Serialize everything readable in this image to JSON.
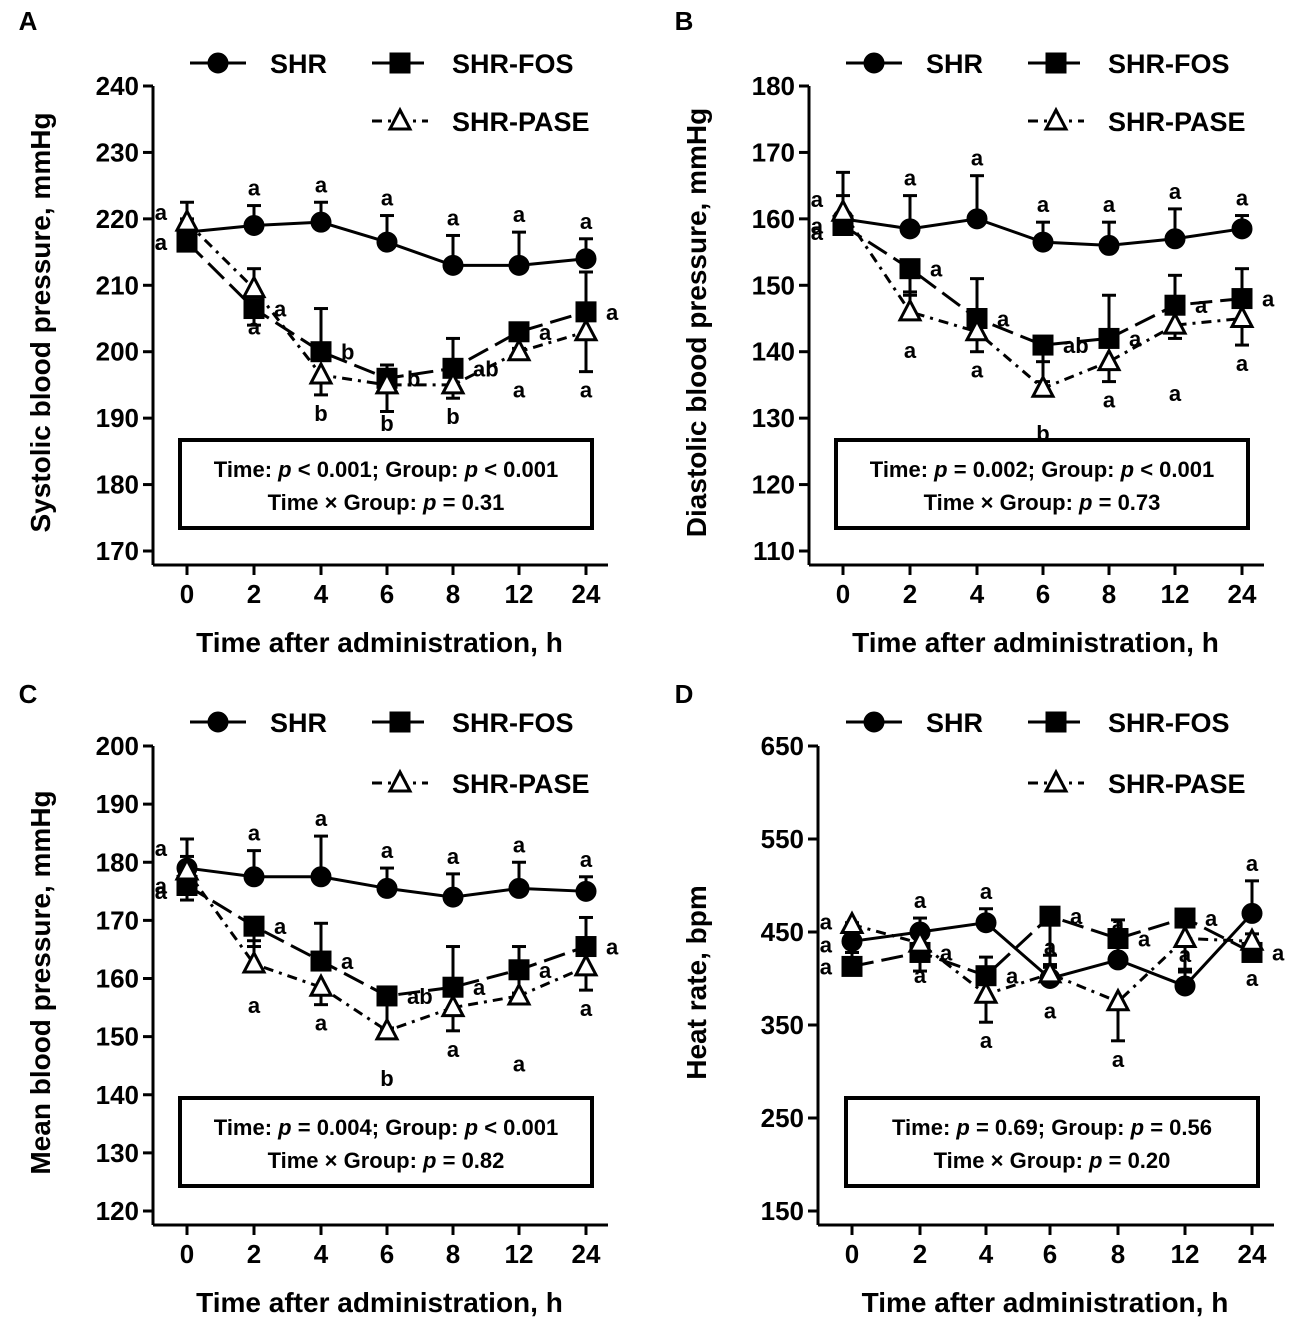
{
  "legend": {
    "shr": "SHR",
    "fos": "SHR-FOS",
    "pase": "SHR-PASE"
  },
  "chart_data": [
    {
      "panel": "A",
      "type": "line",
      "title": "",
      "ylabel": "Systolic blood pressure, mmHg",
      "xlabel": "Time after administration, h",
      "categories": [
        "0",
        "2",
        "4",
        "6",
        "8",
        "12",
        "24"
      ],
      "ylim": [
        170,
        240
      ],
      "yticks": [
        170,
        180,
        190,
        200,
        210,
        220,
        230,
        240
      ],
      "legend_position": "top",
      "series": [
        {
          "name": "SHR",
          "marker": "circle",
          "values": [
            218,
            219,
            219.5,
            216.5,
            213,
            213,
            214
          ],
          "errors": [
            4.5,
            3,
            3,
            4,
            4.5,
            5,
            3
          ]
        },
        {
          "name": "SHR-FOS",
          "marker": "square",
          "values": [
            216.5,
            206.5,
            200,
            196,
            197.5,
            203,
            206
          ],
          "errors": [
            3.5,
            2.5,
            6.5,
            5,
            4.5,
            2.5,
            6
          ]
        },
        {
          "name": "SHR-PASE",
          "marker": "triangle",
          "values": [
            219.5,
            209.5,
            196.5,
            195,
            195,
            200,
            203
          ],
          "errors": [
            3,
            3,
            3,
            3,
            2,
            3,
            6
          ]
        }
      ],
      "annotations": {
        "SHR": [
          "a",
          "a",
          "a",
          "a",
          "a",
          "a",
          "a"
        ],
        "SHR-FOS": [
          "a",
          "a",
          "b",
          "b",
          "ab",
          "a",
          "a"
        ],
        "SHR-PASE": [
          "a",
          "a",
          "b",
          "b",
          "b",
          "a",
          "a"
        ]
      },
      "stats_line1": {
        "a": "Time: ",
        "p1": "p",
        "b": " < 0.001; Group: ",
        "p2": "p",
        "c": " < 0.001"
      },
      "stats_line2": {
        "a": "Time × Group: ",
        "p": "p",
        "b": " = 0.31"
      }
    },
    {
      "panel": "B",
      "type": "line",
      "title": "",
      "ylabel": "Diastolic blood pressure, mmHg",
      "xlabel": "Time after administration, h",
      "categories": [
        "0",
        "2",
        "4",
        "6",
        "8",
        "12",
        "24"
      ],
      "ylim": [
        110,
        180
      ],
      "yticks": [
        110,
        120,
        130,
        140,
        150,
        160,
        170,
        180
      ],
      "legend_position": "top",
      "series": [
        {
          "name": "SHR",
          "marker": "circle",
          "values": [
            160,
            158.5,
            160,
            156.5,
            156,
            157,
            158.5
          ],
          "errors": [
            7,
            5,
            6.5,
            3,
            3.5,
            4.5,
            2
          ]
        },
        {
          "name": "SHR-FOS",
          "marker": "square",
          "values": [
            159,
            152.5,
            145,
            141,
            142,
            147,
            148
          ],
          "errors": [
            4.5,
            4,
            6,
            5.5,
            6.5,
            5,
            4.5
          ]
        },
        {
          "name": "SHR-PASE",
          "marker": "triangle",
          "values": [
            161,
            146,
            143,
            134.5,
            138.5,
            144,
            145
          ],
          "errors": [
            3,
            3,
            3,
            4,
            3,
            7.5,
            4
          ]
        }
      ],
      "annotations": {
        "SHR": [
          "a",
          "a",
          "a",
          "a",
          "a",
          "a",
          "a"
        ],
        "SHR-FOS": [
          "a",
          "a",
          "a",
          "ab",
          "a",
          "a",
          "a"
        ],
        "SHR-PASE": [
          "a",
          "a",
          "a",
          "b",
          "a",
          "a",
          "a"
        ]
      },
      "stats_line1": {
        "a": "Time: ",
        "p1": "p",
        "b": " = 0.002; Group: ",
        "p2": "p",
        "c": " < 0.001"
      },
      "stats_line2": {
        "a": "Time × Group: ",
        "p": "p",
        "b": " = 0.73"
      }
    },
    {
      "panel": "C",
      "type": "line",
      "title": "",
      "ylabel": "Mean blood pressure, mmHg",
      "xlabel": "Time after administration, h",
      "categories": [
        "0",
        "2",
        "4",
        "6",
        "8",
        "12",
        "24"
      ],
      "ylim": [
        120,
        200
      ],
      "yticks": [
        120,
        130,
        140,
        150,
        160,
        170,
        180,
        190,
        200
      ],
      "legend_position": "top",
      "series": [
        {
          "name": "SHR",
          "marker": "circle",
          "values": [
            179,
            177.5,
            177.5,
            175.5,
            174,
            175.5,
            175
          ],
          "errors": [
            5,
            4.5,
            7,
            3.5,
            4,
            4.5,
            2.5
          ]
        },
        {
          "name": "SHR-FOS",
          "marker": "square",
          "values": [
            176,
            169,
            163,
            157,
            158.5,
            161.5,
            165.5
          ],
          "errors": [
            5,
            3.5,
            6.5,
            5.5,
            7,
            4,
            5
          ]
        },
        {
          "name": "SHR-PASE",
          "marker": "triangle",
          "values": [
            178.5,
            162.5,
            158.5,
            151,
            155,
            157,
            162
          ],
          "errors": [
            5,
            4,
            3,
            5,
            4,
            8.5,
            4
          ]
        }
      ],
      "annotations": {
        "SHR": [
          "a",
          "a",
          "a",
          "a",
          "a",
          "a",
          "a"
        ],
        "SHR-FOS": [
          "a",
          "a",
          "a",
          "ab",
          "a",
          "a",
          "a"
        ],
        "SHR-PASE": [
          "a",
          "a",
          "a",
          "b",
          "a",
          "a",
          "a"
        ]
      },
      "stats_line1": {
        "a": "Time: ",
        "p1": "p",
        "b": " = 0.004; Group: ",
        "p2": "p",
        "c": " < 0.001"
      },
      "stats_line2": {
        "a": "Time × Group: ",
        "p": "p",
        "b": " = 0.82"
      }
    },
    {
      "panel": "D",
      "type": "line",
      "title": "",
      "ylabel": "Heat rate, bpm",
      "xlabel": "Time after administration, h",
      "categories": [
        "0",
        "2",
        "4",
        "6",
        "8",
        "12",
        "24"
      ],
      "ylim": [
        150,
        650
      ],
      "yticks": [
        150,
        250,
        350,
        450,
        550,
        650
      ],
      "legend_position": "top",
      "series": [
        {
          "name": "SHR",
          "marker": "circle",
          "values": [
            440,
            450,
            460,
            400,
            420,
            392,
            470
          ],
          "errors": [
            20,
            15,
            15,
            15,
            20,
            15,
            35
          ]
        },
        {
          "name": "SHR-FOS",
          "marker": "square",
          "values": [
            413,
            428,
            403,
            467,
            443,
            465,
            428
          ],
          "errors": [
            15,
            20,
            20,
            55,
            20,
            55,
            20
          ]
        },
        {
          "name": "SHR-PASE",
          "marker": "triangle",
          "values": [
            458,
            438,
            383,
            405,
            375,
            443,
            440
          ],
          "errors": [
            30,
            15,
            30,
            20,
            42,
            30,
            20
          ]
        }
      ],
      "annotations": {
        "SHR": [
          "a",
          "a",
          "a",
          "a",
          "a",
          "a",
          "a"
        ],
        "SHR-FOS": [
          "a",
          "a",
          "a",
          "a",
          "a",
          "a",
          "a"
        ],
        "SHR-PASE": [
          "a",
          "a",
          "a",
          "a",
          "a",
          "a",
          "a"
        ]
      },
      "stats_line1": {
        "a": "Time: ",
        "p1": "p",
        "b": " = 0.69; Group: ",
        "p2": "p",
        "c": " = 0.56"
      },
      "stats_line2": {
        "a": "Time × Group: ",
        "p": "p",
        "b": " = 0.20"
      }
    }
  ]
}
